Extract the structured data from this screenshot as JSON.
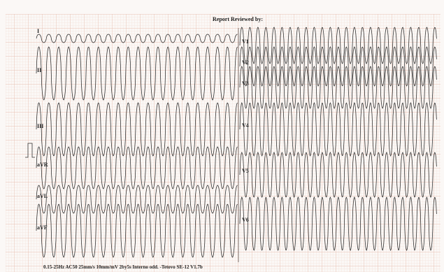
{
  "header": {
    "title": "Report Reviewed by:"
  },
  "leads": {
    "left": [
      "I",
      "II",
      "III",
      "aVR",
      "aVL",
      "aVF"
    ],
    "right": [
      "V1",
      "V2",
      "V3",
      "V4",
      "V5",
      "V6"
    ]
  },
  "footer": "0.15-25Hz  AC50  25mm/s  10mm/mV  2by5s  Interno odd.  -Tetovo  SE-12  V1.7b"
}
